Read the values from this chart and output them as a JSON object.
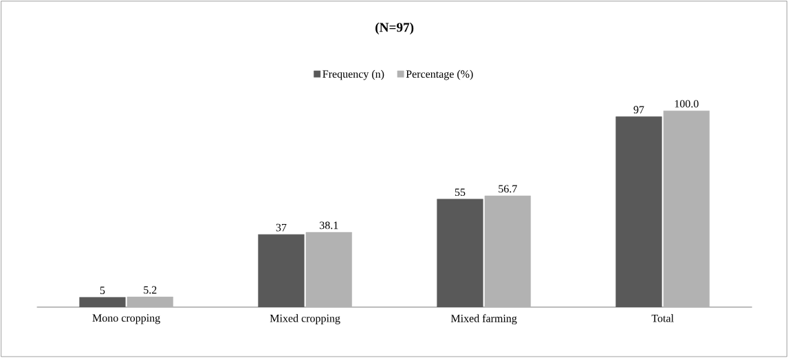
{
  "chart_data": {
    "type": "bar",
    "title": "(N=97)",
    "categories": [
      "Mono cropping",
      "Mixed cropping",
      "Mixed farming",
      "Total"
    ],
    "series": [
      {
        "name": "Frequency (n)",
        "color": "#595959",
        "values": [
          5,
          37,
          55,
          97
        ],
        "value_labels": [
          "5",
          "37",
          "55",
          "97"
        ]
      },
      {
        "name": "Percentage (%)",
        "color": "#b2b2b2",
        "values": [
          5.2,
          38.1,
          56.7,
          100.0
        ],
        "value_labels": [
          "5.2",
          "38.1",
          "56.7",
          "100.0"
        ]
      }
    ],
    "legend": "top"
  }
}
